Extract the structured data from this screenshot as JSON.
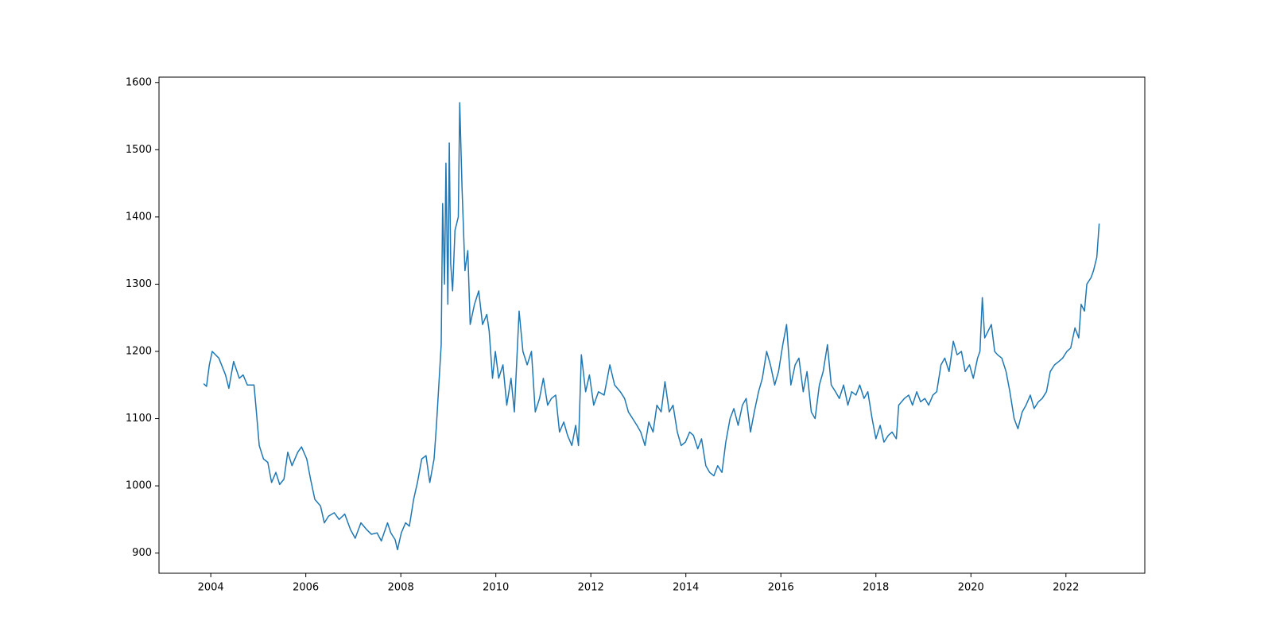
{
  "chart_data": {
    "type": "line",
    "x": [
      2003.85,
      2003.91,
      2003.97,
      2004.03,
      2004.17,
      2004.31,
      2004.38,
      2004.48,
      2004.6,
      2004.68,
      2004.77,
      2004.91,
      2004.96,
      2005.02,
      2005.11,
      2005.2,
      2005.28,
      2005.37,
      2005.45,
      2005.54,
      2005.62,
      2005.71,
      2005.83,
      2005.91,
      2006.02,
      2006.1,
      2006.19,
      2006.31,
      2006.39,
      2006.48,
      2006.6,
      2006.7,
      2006.82,
      2006.94,
      2007.04,
      2007.16,
      2007.28,
      2007.38,
      2007.5,
      2007.59,
      2007.72,
      2007.79,
      2007.88,
      2007.93,
      2008.01,
      2008.1,
      2008.18,
      2008.27,
      2008.35,
      2008.44,
      2008.53,
      2008.61,
      2008.7,
      2008.75,
      2008.8,
      2008.85,
      2008.88,
      2008.92,
      2008.95,
      2008.99,
      2009.02,
      2009.05,
      2009.09,
      2009.14,
      2009.21,
      2009.24,
      2009.29,
      2009.35,
      2009.41,
      2009.46,
      2009.55,
      2009.64,
      2009.72,
      2009.81,
      2009.86,
      2009.93,
      2009.99,
      2010.06,
      2010.15,
      2010.23,
      2010.32,
      2010.39,
      2010.49,
      2010.57,
      2010.66,
      2010.75,
      2010.83,
      2010.92,
      2011.0,
      2011.09,
      2011.17,
      2011.26,
      2011.34,
      2011.43,
      2011.51,
      2011.6,
      2011.68,
      2011.74,
      2011.8,
      2011.89,
      2011.97,
      2012.06,
      2012.16,
      2012.28,
      2012.4,
      2012.5,
      2012.62,
      2012.71,
      2012.79,
      2012.88,
      2012.97,
      2013.05,
      2013.14,
      2013.22,
      2013.31,
      2013.39,
      2013.48,
      2013.56,
      2013.65,
      2013.73,
      2013.82,
      2013.9,
      2013.99,
      2014.08,
      2014.16,
      2014.25,
      2014.33,
      2014.42,
      2014.5,
      2014.59,
      2014.67,
      2014.76,
      2014.84,
      2014.93,
      2015.01,
      2015.1,
      2015.19,
      2015.27,
      2015.36,
      2015.44,
      2015.53,
      2015.61,
      2015.7,
      2015.78,
      2015.87,
      2015.95,
      2016.04,
      2016.12,
      2016.21,
      2016.3,
      2016.38,
      2016.47,
      2016.55,
      2016.64,
      2016.72,
      2016.81,
      2016.89,
      2016.98,
      2017.06,
      2017.15,
      2017.23,
      2017.32,
      2017.41,
      2017.49,
      2017.58,
      2017.66,
      2017.75,
      2017.83,
      2017.92,
      2018.0,
      2018.09,
      2018.17,
      2018.26,
      2018.34,
      2018.43,
      2018.48,
      2018.6,
      2018.69,
      2018.77,
      2018.86,
      2018.94,
      2019.03,
      2019.11,
      2019.2,
      2019.28,
      2019.37,
      2019.45,
      2019.54,
      2019.63,
      2019.71,
      2019.8,
      2019.88,
      2019.97,
      2020.05,
      2020.14,
      2020.19,
      2020.24,
      2020.29,
      2020.36,
      2020.43,
      2020.5,
      2020.56,
      2020.65,
      2020.74,
      2020.82,
      2020.91,
      2020.99,
      2021.08,
      2021.16,
      2021.25,
      2021.33,
      2021.42,
      2021.5,
      2021.59,
      2021.67,
      2021.76,
      2021.85,
      2021.93,
      2022.02,
      2022.1,
      2022.19,
      2022.27,
      2022.32,
      2022.39,
      2022.44,
      2022.53,
      2022.58,
      2022.65,
      2022.7
    ],
    "series": [
      {
        "color": "#1f77b4",
        "values": [
          1152,
          1148,
          1180,
          1200,
          1190,
          1165,
          1145,
          1185,
          1160,
          1165,
          1150,
          1150,
          1110,
          1060,
          1040,
          1035,
          1005,
          1020,
          1002,
          1010,
          1050,
          1030,
          1050,
          1058,
          1040,
          1010,
          980,
          970,
          945,
          955,
          960,
          950,
          958,
          935,
          922,
          945,
          935,
          928,
          930,
          918,
          945,
          930,
          920,
          905,
          930,
          945,
          940,
          980,
          1005,
          1040,
          1045,
          1005,
          1040,
          1090,
          1150,
          1210,
          1420,
          1300,
          1480,
          1270,
          1510,
          1330,
          1290,
          1380,
          1400,
          1570,
          1440,
          1320,
          1350,
          1240,
          1270,
          1290,
          1240,
          1255,
          1230,
          1160,
          1200,
          1160,
          1180,
          1120,
          1160,
          1110,
          1260,
          1200,
          1180,
          1200,
          1110,
          1130,
          1160,
          1120,
          1130,
          1135,
          1080,
          1095,
          1075,
          1060,
          1090,
          1060,
          1195,
          1140,
          1165,
          1120,
          1140,
          1135,
          1180,
          1150,
          1140,
          1130,
          1110,
          1100,
          1090,
          1080,
          1060,
          1095,
          1080,
          1120,
          1110,
          1155,
          1110,
          1120,
          1080,
          1060,
          1065,
          1080,
          1075,
          1055,
          1070,
          1030,
          1020,
          1015,
          1030,
          1020,
          1065,
          1100,
          1115,
          1090,
          1120,
          1130,
          1080,
          1110,
          1140,
          1160,
          1200,
          1180,
          1150,
          1170,
          1210,
          1240,
          1150,
          1180,
          1190,
          1140,
          1170,
          1110,
          1100,
          1150,
          1170,
          1210,
          1150,
          1140,
          1130,
          1150,
          1120,
          1140,
          1135,
          1150,
          1130,
          1140,
          1100,
          1070,
          1090,
          1065,
          1075,
          1080,
          1070,
          1120,
          1130,
          1135,
          1120,
          1140,
          1125,
          1130,
          1120,
          1135,
          1140,
          1180,
          1190,
          1170,
          1215,
          1195,
          1200,
          1170,
          1180,
          1160,
          1190,
          1200,
          1280,
          1220,
          1230,
          1240,
          1200,
          1195,
          1190,
          1170,
          1140,
          1100,
          1085,
          1110,
          1120,
          1135,
          1115,
          1125,
          1130,
          1140,
          1170,
          1180,
          1185,
          1190,
          1200,
          1205,
          1235,
          1220,
          1270,
          1260,
          1300,
          1310,
          1320,
          1340,
          1390
        ]
      }
    ],
    "xlim": [
      2002.91,
      2023.66
    ],
    "ylim": [
      870,
      1608
    ],
    "xticks": [
      2004,
      2006,
      2008,
      2010,
      2012,
      2014,
      2016,
      2018,
      2020,
      2022
    ],
    "yticks": [
      900,
      1000,
      1100,
      1200,
      1300,
      1400,
      1500,
      1600
    ]
  }
}
